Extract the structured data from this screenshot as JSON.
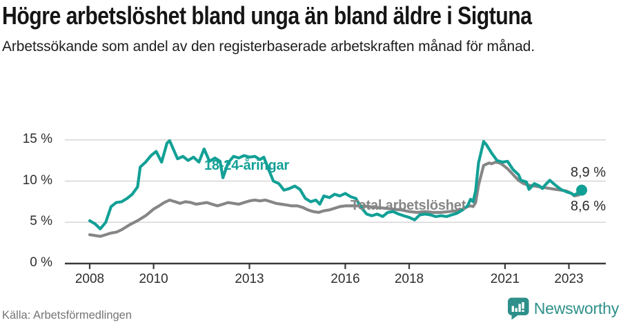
{
  "title": "Högre arbetslöshet bland unga än bland äldre i Sigtuna",
  "subtitle": "Arbetssökande som andel av den registerbaserade arbetskraften månad för månad.",
  "source": "Källa: Arbetsförmedlingen",
  "brand": {
    "name": "Newsworthy",
    "color": "#2e908a"
  },
  "colors": {
    "young": "#12a096",
    "total": "#868686",
    "grid": "#d6d6d6",
    "axis": "#3a3a3a"
  },
  "chart_data": {
    "type": "line",
    "title": "Högre arbetslöshet bland unga än bland äldre i Sigtuna",
    "xlabel": "",
    "ylabel": "%",
    "xlim": [
      2007.05,
      2024.15
    ],
    "ylim": [
      0,
      16.5
    ],
    "grid": true,
    "legend_position": "inline-labels",
    "x_ticks": [
      {
        "value": 2008,
        "label": "2008"
      },
      {
        "value": 2010,
        "label": "2010"
      },
      {
        "value": 2013,
        "label": "2013"
      },
      {
        "value": 2016,
        "label": "2016"
      },
      {
        "value": 2018,
        "label": "2018"
      },
      {
        "value": 2021,
        "label": "2021"
      },
      {
        "value": 2023,
        "label": "2023"
      }
    ],
    "y_ticks": [
      {
        "value": 0,
        "label": "0 %"
      },
      {
        "value": 5,
        "label": "5 %"
      },
      {
        "value": 10,
        "label": "10 %"
      },
      {
        "value": 15,
        "label": "15 %"
      }
    ],
    "series": [
      {
        "name": "Total arbetslöshet",
        "color": "#868686",
        "end_label": "8,6 %",
        "end_dot": false,
        "points": [
          [
            2008.0,
            3.5
          ],
          [
            2008.17,
            3.4
          ],
          [
            2008.33,
            3.3
          ],
          [
            2008.5,
            3.5
          ],
          [
            2008.67,
            3.7
          ],
          [
            2008.83,
            3.8
          ],
          [
            2009.0,
            4.1
          ],
          [
            2009.25,
            4.7
          ],
          [
            2009.5,
            5.2
          ],
          [
            2009.75,
            5.8
          ],
          [
            2010.0,
            6.6
          ],
          [
            2010.17,
            7.0
          ],
          [
            2010.33,
            7.4
          ],
          [
            2010.5,
            7.7
          ],
          [
            2010.67,
            7.5
          ],
          [
            2010.83,
            7.3
          ],
          [
            2011.0,
            7.5
          ],
          [
            2011.17,
            7.4
          ],
          [
            2011.33,
            7.2
          ],
          [
            2011.5,
            7.3
          ],
          [
            2011.67,
            7.4
          ],
          [
            2011.83,
            7.2
          ],
          [
            2012.0,
            7.0
          ],
          [
            2012.17,
            7.2
          ],
          [
            2012.33,
            7.4
          ],
          [
            2012.5,
            7.3
          ],
          [
            2012.67,
            7.2
          ],
          [
            2012.83,
            7.4
          ],
          [
            2013.0,
            7.6
          ],
          [
            2013.17,
            7.7
          ],
          [
            2013.33,
            7.6
          ],
          [
            2013.5,
            7.7
          ],
          [
            2013.67,
            7.5
          ],
          [
            2013.83,
            7.3
          ],
          [
            2014.0,
            7.2
          ],
          [
            2014.17,
            7.1
          ],
          [
            2014.33,
            7.0
          ],
          [
            2014.5,
            7.0
          ],
          [
            2014.67,
            6.8
          ],
          [
            2014.83,
            6.5
          ],
          [
            2015.0,
            6.3
          ],
          [
            2015.17,
            6.2
          ],
          [
            2015.33,
            6.4
          ],
          [
            2015.5,
            6.5
          ],
          [
            2015.67,
            6.7
          ],
          [
            2015.83,
            6.9
          ],
          [
            2016.0,
            7.0
          ],
          [
            2016.25,
            7.0
          ],
          [
            2016.5,
            7.0
          ],
          [
            2016.75,
            6.9
          ],
          [
            2017.0,
            6.8
          ],
          [
            2017.25,
            6.7
          ],
          [
            2017.5,
            6.6
          ],
          [
            2017.75,
            6.5
          ],
          [
            2018.0,
            6.3
          ],
          [
            2018.25,
            6.2
          ],
          [
            2018.5,
            6.3
          ],
          [
            2018.75,
            6.2
          ],
          [
            2019.0,
            6.2
          ],
          [
            2019.25,
            6.3
          ],
          [
            2019.5,
            6.4
          ],
          [
            2019.67,
            6.6
          ],
          [
            2019.83,
            6.9
          ],
          [
            2019.92,
            7.0
          ],
          [
            2020.0,
            6.9
          ],
          [
            2020.08,
            7.4
          ],
          [
            2020.17,
            9.5
          ],
          [
            2020.33,
            11.9
          ],
          [
            2020.5,
            12.2
          ],
          [
            2020.58,
            12.1
          ],
          [
            2020.7,
            12.3
          ],
          [
            2020.83,
            12.2
          ],
          [
            2020.92,
            12.0
          ],
          [
            2021.08,
            11.5
          ],
          [
            2021.25,
            10.8
          ],
          [
            2021.42,
            10.1
          ],
          [
            2021.58,
            9.7
          ],
          [
            2021.75,
            9.5
          ],
          [
            2021.92,
            9.4
          ],
          [
            2022.08,
            9.3
          ],
          [
            2022.25,
            9.2
          ],
          [
            2022.42,
            9.1
          ],
          [
            2022.58,
            9.0
          ],
          [
            2022.75,
            8.9
          ],
          [
            2022.92,
            8.8
          ],
          [
            2023.08,
            8.5
          ],
          [
            2023.17,
            8.2
          ],
          [
            2023.3,
            8.3
          ],
          [
            2023.4,
            8.6
          ]
        ]
      },
      {
        "name": "18-24-åringar",
        "color": "#12a096",
        "end_label": "8,9 %",
        "end_dot": true,
        "points": [
          [
            2008.0,
            5.2
          ],
          [
            2008.17,
            4.8
          ],
          [
            2008.33,
            4.2
          ],
          [
            2008.5,
            5.0
          ],
          [
            2008.67,
            6.9
          ],
          [
            2008.83,
            7.4
          ],
          [
            2009.0,
            7.5
          ],
          [
            2009.17,
            7.9
          ],
          [
            2009.33,
            8.4
          ],
          [
            2009.5,
            9.3
          ],
          [
            2009.58,
            11.7
          ],
          [
            2009.75,
            12.3
          ],
          [
            2009.92,
            13.1
          ],
          [
            2010.08,
            13.6
          ],
          [
            2010.25,
            12.3
          ],
          [
            2010.42,
            14.6
          ],
          [
            2010.5,
            14.9
          ],
          [
            2010.58,
            14.2
          ],
          [
            2010.75,
            12.7
          ],
          [
            2010.92,
            13.0
          ],
          [
            2011.08,
            12.5
          ],
          [
            2011.25,
            12.9
          ],
          [
            2011.42,
            12.3
          ],
          [
            2011.58,
            13.9
          ],
          [
            2011.75,
            12.4
          ],
          [
            2011.92,
            12.8
          ],
          [
            2012.08,
            12.4
          ],
          [
            2012.17,
            10.4
          ],
          [
            2012.33,
            12.2
          ],
          [
            2012.5,
            13.0
          ],
          [
            2012.67,
            12.8
          ],
          [
            2012.83,
            13.1
          ],
          [
            2013.0,
            12.9
          ],
          [
            2013.17,
            13.0
          ],
          [
            2013.33,
            12.6
          ],
          [
            2013.45,
            12.9
          ],
          [
            2013.58,
            11.6
          ],
          [
            2013.75,
            10.0
          ],
          [
            2013.92,
            9.7
          ],
          [
            2014.08,
            8.9
          ],
          [
            2014.25,
            9.1
          ],
          [
            2014.42,
            9.4
          ],
          [
            2014.58,
            9.0
          ],
          [
            2014.75,
            7.9
          ],
          [
            2014.92,
            7.5
          ],
          [
            2015.08,
            7.7
          ],
          [
            2015.2,
            7.2
          ],
          [
            2015.33,
            8.2
          ],
          [
            2015.5,
            8.0
          ],
          [
            2015.67,
            8.4
          ],
          [
            2015.83,
            8.2
          ],
          [
            2016.0,
            8.5
          ],
          [
            2016.17,
            8.1
          ],
          [
            2016.33,
            7.9
          ],
          [
            2016.5,
            6.8
          ],
          [
            2016.67,
            6.0
          ],
          [
            2016.83,
            5.8
          ],
          [
            2017.0,
            6.0
          ],
          [
            2017.17,
            5.7
          ],
          [
            2017.33,
            6.2
          ],
          [
            2017.5,
            6.3
          ],
          [
            2017.67,
            6.0
          ],
          [
            2017.83,
            5.8
          ],
          [
            2018.0,
            5.6
          ],
          [
            2018.17,
            5.3
          ],
          [
            2018.33,
            5.9
          ],
          [
            2018.5,
            6.0
          ],
          [
            2018.67,
            5.9
          ],
          [
            2018.83,
            5.7
          ],
          [
            2019.0,
            5.8
          ],
          [
            2019.17,
            5.7
          ],
          [
            2019.33,
            5.9
          ],
          [
            2019.5,
            6.1
          ],
          [
            2019.67,
            6.5
          ],
          [
            2019.83,
            7.0
          ],
          [
            2019.92,
            7.8
          ],
          [
            2020.0,
            7.5
          ],
          [
            2020.08,
            8.8
          ],
          [
            2020.17,
            12.2
          ],
          [
            2020.33,
            14.8
          ],
          [
            2020.42,
            14.4
          ],
          [
            2020.58,
            13.4
          ],
          [
            2020.75,
            12.5
          ],
          [
            2020.92,
            12.3
          ],
          [
            2021.08,
            12.4
          ],
          [
            2021.25,
            11.4
          ],
          [
            2021.42,
            10.8
          ],
          [
            2021.5,
            10.1
          ],
          [
            2021.67,
            9.9
          ],
          [
            2021.75,
            9.0
          ],
          [
            2021.92,
            9.7
          ],
          [
            2022.08,
            9.4
          ],
          [
            2022.17,
            9.1
          ],
          [
            2022.25,
            9.5
          ],
          [
            2022.4,
            10.1
          ],
          [
            2022.58,
            9.5
          ],
          [
            2022.75,
            9.0
          ],
          [
            2022.92,
            8.7
          ],
          [
            2023.08,
            8.5
          ],
          [
            2023.17,
            8.3
          ],
          [
            2023.3,
            8.6
          ],
          [
            2023.4,
            8.9
          ]
        ]
      }
    ]
  }
}
